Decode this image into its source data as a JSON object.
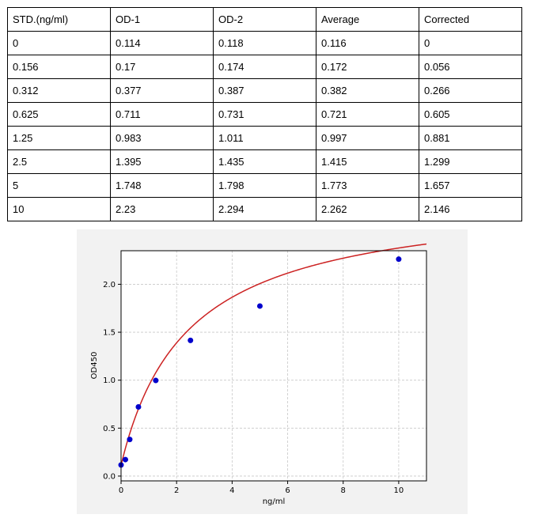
{
  "table": {
    "headers": [
      "STD.(ng/ml)",
      "OD-1",
      "OD-2",
      "Average",
      "Corrected"
    ],
    "rows": [
      [
        "0",
        "0.114",
        "0.118",
        "0.116",
        "0"
      ],
      [
        "0.156",
        "0.17",
        "0.174",
        "0.172",
        "0.056"
      ],
      [
        "0.312",
        "0.377",
        "0.387",
        "0.382",
        "0.266"
      ],
      [
        "0.625",
        "0.711",
        "0.731",
        "0.721",
        "0.605"
      ],
      [
        "1.25",
        "0.983",
        "1.011",
        "0.997",
        "0.881"
      ],
      [
        "2.5",
        "1.395",
        "1.435",
        "1.415",
        "1.299"
      ],
      [
        "5",
        "1.748",
        "1.798",
        "1.773",
        "1.657"
      ],
      [
        "10",
        "2.23",
        "2.294",
        "2.262",
        "2.146"
      ]
    ]
  },
  "chart_data": {
    "type": "scatter",
    "xlabel": "ng/ml",
    "ylabel": "OD450",
    "xlim": [
      0,
      11
    ],
    "ylim": [
      -0.05,
      2.35
    ],
    "xticks": [
      0,
      2,
      4,
      6,
      8,
      10
    ],
    "yticks": [
      0.0,
      0.5,
      1.0,
      1.5,
      2.0
    ],
    "ytick_labels": [
      "0.0",
      "0.5",
      "1.0",
      "1.5",
      "2.0"
    ],
    "grid": true,
    "series": [
      {
        "kind": "points",
        "color": "#0000cc",
        "x": [
          0,
          0.156,
          0.312,
          0.625,
          1.25,
          2.5,
          5,
          10
        ],
        "y": [
          0.116,
          0.172,
          0.382,
          0.721,
          0.997,
          1.415,
          1.773,
          2.262
        ]
      },
      {
        "kind": "fit-curve",
        "color": "#cc2222",
        "model": "y = d + (a - d) / (1 + (x / c)^b)",
        "params": {
          "a": 0.11,
          "b": 0.98,
          "c": 2.45,
          "d": 2.95
        }
      }
    ]
  }
}
